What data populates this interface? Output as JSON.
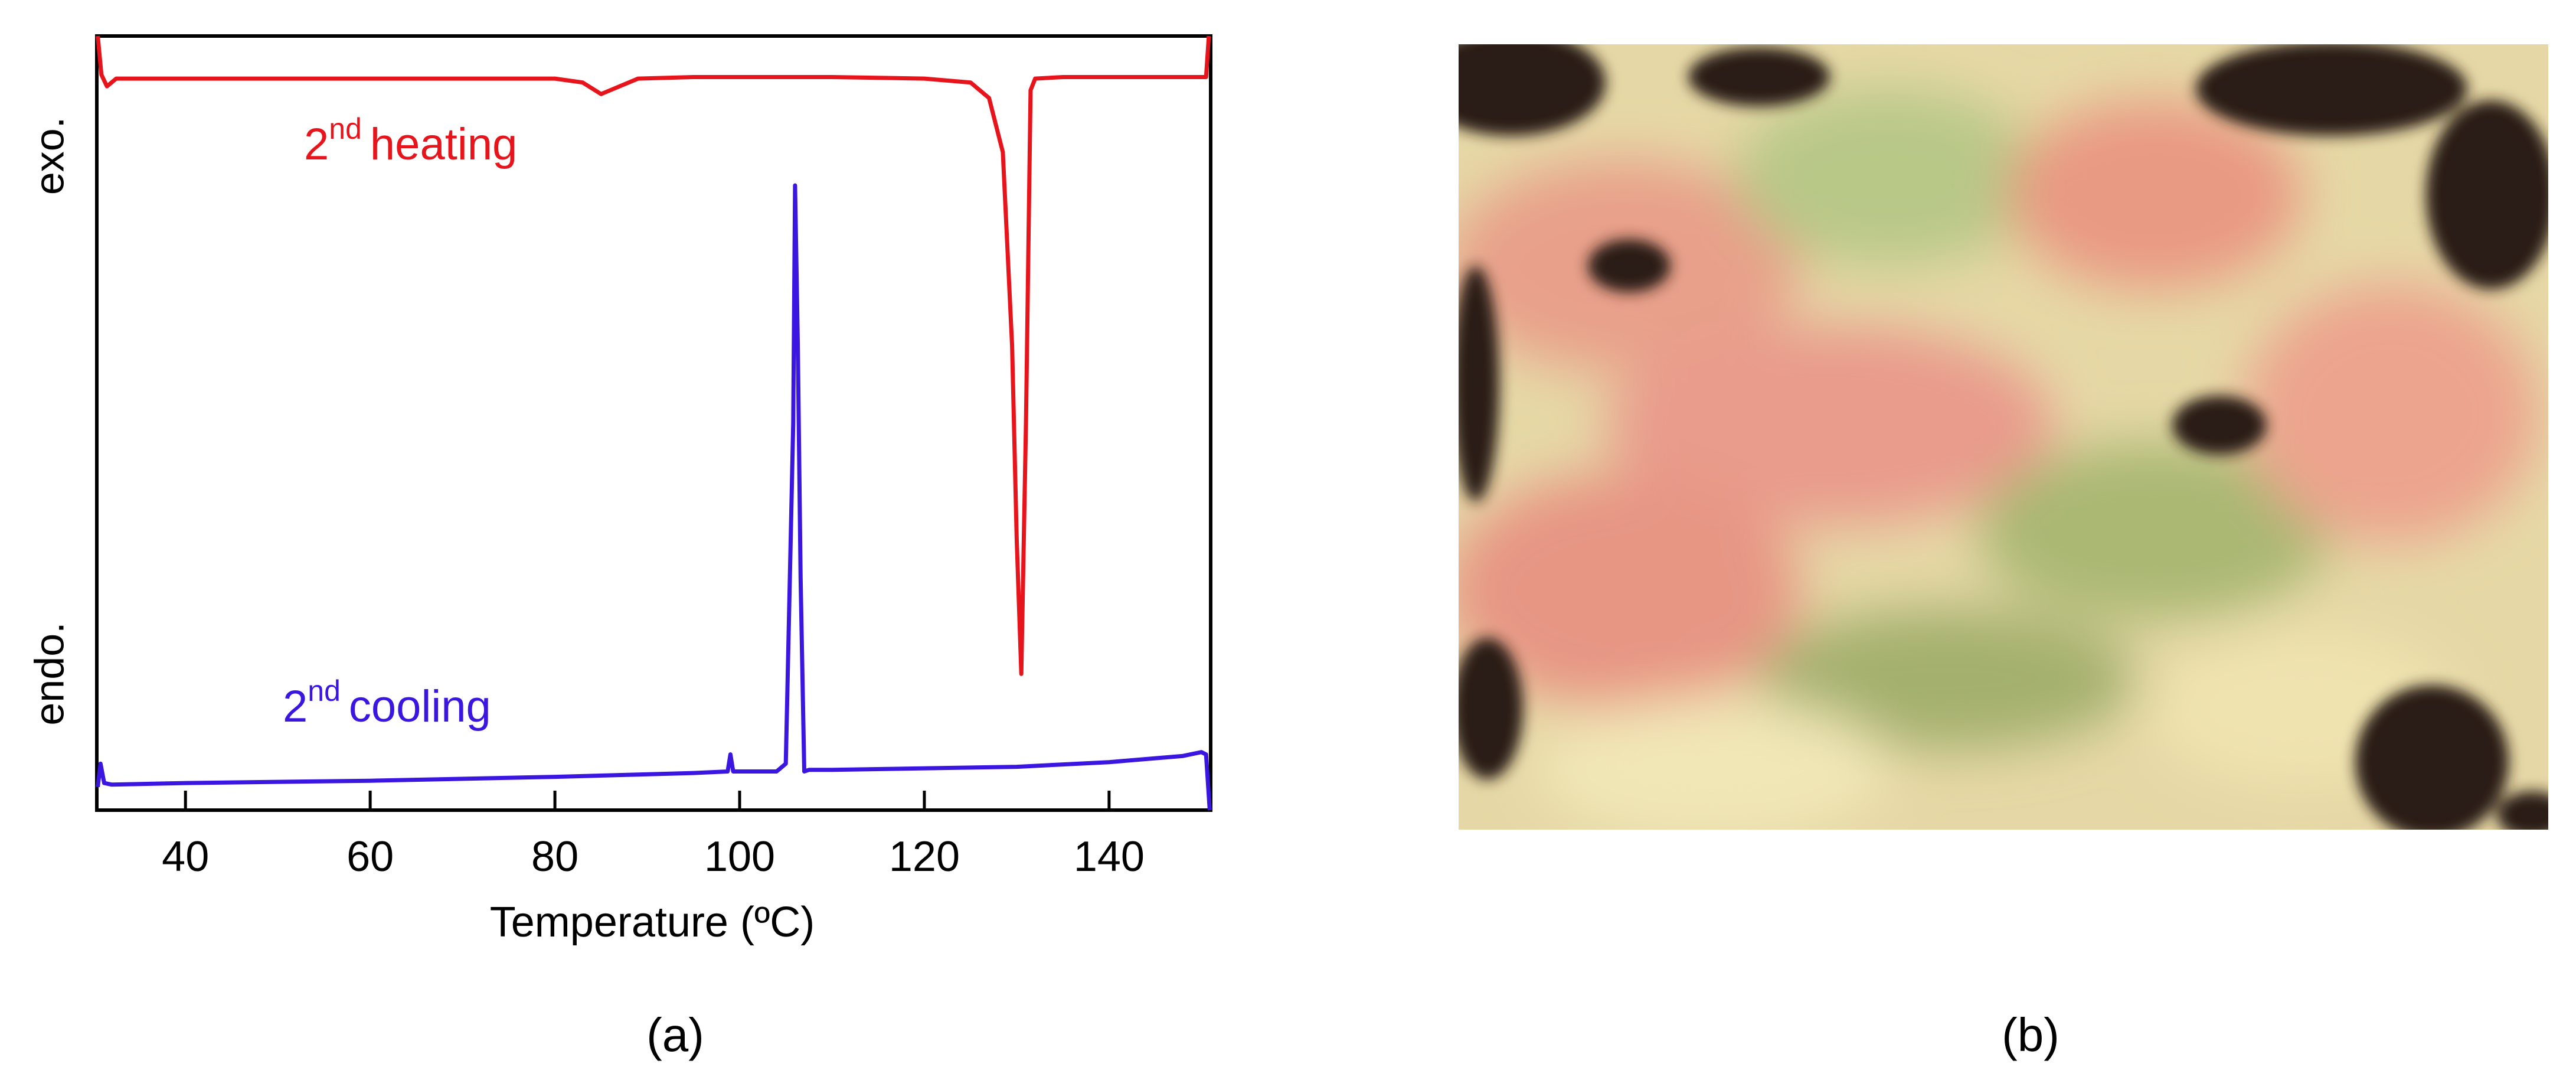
{
  "chart_data": {
    "type": "line",
    "xlabel": "Temperature (ºC)",
    "ylabels": {
      "top": "exo.",
      "bottom": "endo."
    },
    "xlim": [
      30.4,
      151
    ],
    "xticks": [
      40,
      60,
      80,
      100,
      120,
      140
    ],
    "ylim": [
      0,
      1
    ],
    "series": [
      {
        "name": {
          "base": "2",
          "sup": "nd",
          "text": "heating"
        },
        "color": "#e8141c",
        "x": [
          30.5,
          30.9,
          31.5,
          32.5,
          40,
          60,
          80,
          83,
          85,
          87,
          89,
          95,
          110,
          120,
          125,
          127,
          128.5,
          129.5,
          130,
          130.5,
          131,
          131.5,
          132,
          135,
          145,
          150.5,
          150.8
        ],
        "values": [
          1.0,
          0.95,
          0.935,
          0.945,
          0.945,
          0.945,
          0.945,
          0.94,
          0.925,
          0.935,
          0.945,
          0.947,
          0.947,
          0.945,
          0.94,
          0.92,
          0.85,
          0.6,
          0.35,
          0.176,
          0.5,
          0.93,
          0.945,
          0.947,
          0.947,
          0.947,
          1.0
        ]
      },
      {
        "name": {
          "base": "2",
          "sup": "nd",
          "text": "cooling"
        },
        "color": "#3a16e0",
        "x": [
          30.5,
          30.8,
          31.2,
          32,
          40,
          60,
          80,
          95,
          98.7,
          99,
          99.3,
          104,
          105,
          105.5,
          105.8,
          106,
          106.3,
          106.6,
          107,
          107.5,
          110,
          130,
          140,
          148,
          150,
          150.5,
          150.9
        ],
        "values": [
          0.03,
          0.06,
          0.035,
          0.033,
          0.035,
          0.038,
          0.043,
          0.048,
          0.05,
          0.072,
          0.05,
          0.05,
          0.06,
          0.335,
          0.5,
          0.807,
          0.6,
          0.3,
          0.05,
          0.052,
          0.052,
          0.056,
          0.062,
          0.07,
          0.075,
          0.072,
          0
        ]
      }
    ],
    "panel_labels": [
      "(a)",
      "(b)"
    ]
  }
}
